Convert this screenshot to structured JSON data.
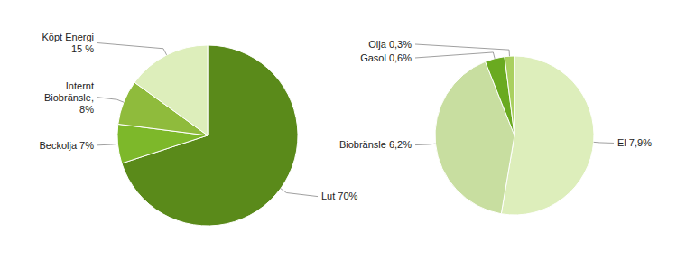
{
  "chart_data": [
    {
      "type": "pie",
      "values": [
        70,
        7,
        8,
        15
      ],
      "value_labels": [
        "Lut 70%",
        "Beckolja 7%",
        "Internt\nBiobränsle,\n8%",
        "Köpt Energi\n15 %"
      ],
      "colors": [
        "#5a8a1a",
        "#7db82a",
        "#8fbb3c",
        "#ddeebb"
      ],
      "data_labels": true
    },
    {
      "type": "pie",
      "values": [
        7.9,
        6.2,
        0.6,
        0.3
      ],
      "value_labels": [
        "El 7,9%",
        "Biobränsle 6,2%",
        "Gasol 0,6%",
        "Olja 0,3%"
      ],
      "colors": [
        "#ddeebb",
        "#c8dea0",
        "#6aaa20",
        "#aad060"
      ],
      "data_labels": true
    }
  ]
}
